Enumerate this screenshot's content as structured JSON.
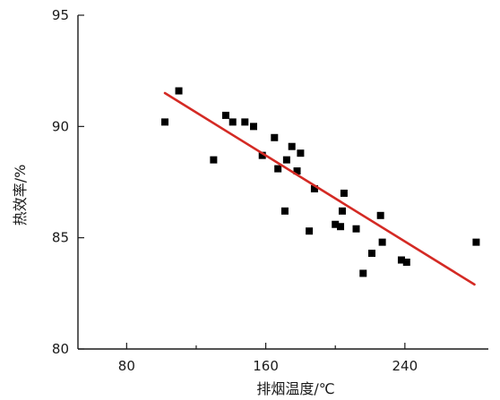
{
  "chart_data": {
    "type": "scatter",
    "xlabel": "排烟温度/℃",
    "ylabel": "热效率/%",
    "xlim": [
      52,
      288
    ],
    "ylim": [
      80,
      95
    ],
    "x_ticks": [
      80,
      160,
      240
    ],
    "x_minor_ticks": [
      120,
      200
    ],
    "y_ticks": [
      80,
      85,
      90,
      95
    ],
    "points": [
      {
        "x": 102,
        "y": 90.2
      },
      {
        "x": 110,
        "y": 91.6
      },
      {
        "x": 130,
        "y": 88.5
      },
      {
        "x": 137,
        "y": 90.5
      },
      {
        "x": 141,
        "y": 90.2
      },
      {
        "x": 148,
        "y": 90.2
      },
      {
        "x": 153,
        "y": 90.0
      },
      {
        "x": 158,
        "y": 88.7
      },
      {
        "x": 165,
        "y": 89.5
      },
      {
        "x": 167,
        "y": 88.1
      },
      {
        "x": 171,
        "y": 86.2
      },
      {
        "x": 172,
        "y": 88.5
      },
      {
        "x": 175,
        "y": 89.1
      },
      {
        "x": 178,
        "y": 88.0
      },
      {
        "x": 180,
        "y": 88.8
      },
      {
        "x": 185,
        "y": 85.3
      },
      {
        "x": 188,
        "y": 87.2
      },
      {
        "x": 200,
        "y": 85.6
      },
      {
        "x": 203,
        "y": 85.5
      },
      {
        "x": 204,
        "y": 86.2
      },
      {
        "x": 205,
        "y": 87.0
      },
      {
        "x": 212,
        "y": 85.4
      },
      {
        "x": 216,
        "y": 83.4
      },
      {
        "x": 221,
        "y": 84.3
      },
      {
        "x": 226,
        "y": 86.0
      },
      {
        "x": 227,
        "y": 84.8
      },
      {
        "x": 238,
        "y": 84.0
      },
      {
        "x": 241,
        "y": 83.9
      },
      {
        "x": 281,
        "y": 84.8
      }
    ],
    "trendline": {
      "x": [
        102,
        280
      ],
      "y": [
        91.5,
        82.9
      ]
    },
    "colors": {
      "points": "#000000",
      "trendline": "#d42a24",
      "axis": "#1a1a1a"
    },
    "grid": false,
    "legend": "none"
  }
}
